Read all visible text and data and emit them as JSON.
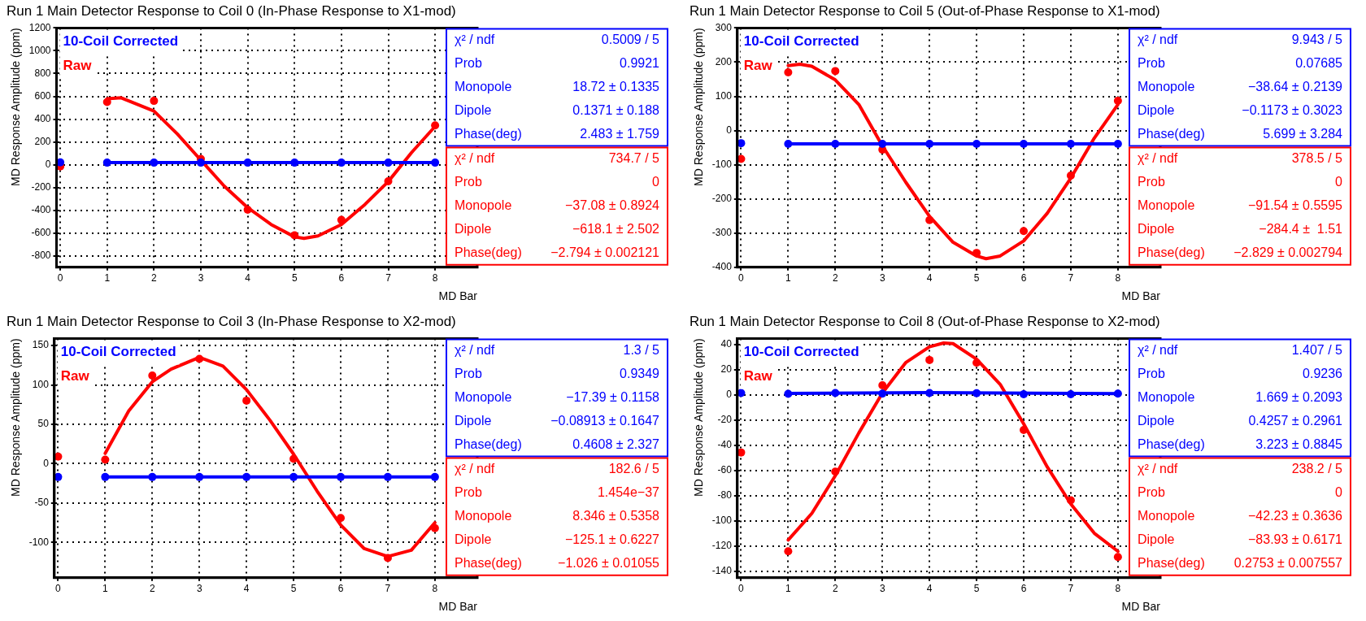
{
  "chart_data": [
    {
      "type": "scatter",
      "title": "Run 1 Main Detector Response to Coil 0 (In-Phase Response to X1-mod)",
      "xlabel": "MD Bar",
      "ylabel": "MD Response Amplitude (ppm)",
      "x": [
        0,
        1,
        2,
        3,
        4,
        5,
        6,
        7,
        8
      ],
      "xlim": [
        -0.08,
        8.9
      ],
      "xticks": [
        0,
        1,
        2,
        3,
        4,
        5,
        6,
        7,
        8
      ],
      "ylim": [
        -900,
        1200
      ],
      "yticks": [
        -800,
        -600,
        -400,
        -200,
        0,
        200,
        400,
        600,
        800,
        1000,
        1200
      ],
      "grid": true,
      "legend": "top left",
      "marker": "circle",
      "series": [
        {
          "name": "10-Coil Corrected",
          "color": "#0000ff",
          "values": [
            20,
            18,
            18,
            18,
            18,
            18,
            18,
            18,
            18
          ]
        },
        {
          "name": "Raw",
          "color": "#ff0000",
          "values": [
            -15,
            550,
            560,
            50,
            -395,
            -620,
            -485,
            -145,
            345
          ]
        },
        {
          "type": "line",
          "marker": "none",
          "color": "#0000ff",
          "x": [
            1,
            8
          ],
          "values": [
            19,
            19
          ]
        },
        {
          "type": "line",
          "marker": "none",
          "color": "#ff0000",
          "x": [
            1,
            1.3,
            2,
            2.5,
            3,
            3.5,
            4,
            4.5,
            5,
            5.2,
            5.5,
            6,
            6.5,
            7,
            7.5,
            8
          ],
          "values": [
            579,
            587,
            471,
            269,
            40,
            -188,
            -377,
            -525,
            -633,
            -646,
            -625,
            -525,
            -350,
            -148,
            108,
            336
          ]
        }
      ],
      "annotations": [
        "χ² / ndf",
        "0.5009 / 5",
        "Prob",
        "0.9921",
        "Monopole",
        "18.72 ± 0.1335",
        "Dipole",
        "0.1371 ± 0.188",
        "Phase(deg)",
        "2.483 ± 1.759",
        "χ² / ndf",
        "734.7 / 5",
        "Prob",
        "0",
        "Monopole",
        "−37.08 ± 0.8924",
        "Dipole",
        "−618.1 ± 2.502",
        "Phase(deg)",
        "−2.794 ± 0.002121"
      ]
    },
    {
      "type": "scatter",
      "title": "Run 1 Main Detector Response to Coil 5 (Out-of-Phase Response to X1-mod)",
      "xlabel": "MD Bar",
      "ylabel": "MD Response Amplitude (ppm)",
      "x": [
        0,
        1,
        2,
        3,
        4,
        5,
        6,
        7,
        8
      ],
      "xlim": [
        -0.08,
        8.9
      ],
      "xticks": [
        0,
        1,
        2,
        3,
        4,
        5,
        6,
        7,
        8
      ],
      "ylim": [
        -400,
        300
      ],
      "yticks": [
        -400,
        -300,
        -200,
        -100,
        0,
        100,
        200,
        300
      ],
      "grid": true,
      "legend": "top left",
      "marker": "circle",
      "series": [
        {
          "name": "10-Coil Corrected",
          "color": "#0000ff",
          "values": [
            -37,
            -39,
            -39,
            -39,
            -39,
            -39,
            -39,
            -39,
            -39
          ]
        },
        {
          "name": "Raw",
          "color": "#ff0000",
          "values": [
            -83,
            170,
            174,
            -56,
            -262,
            -358,
            -294,
            -132,
            87
          ]
        },
        {
          "type": "line",
          "marker": "none",
          "color": "#0000ff",
          "x": [
            1,
            8
          ],
          "values": [
            -39,
            -39
          ]
        },
        {
          "type": "line",
          "marker": "none",
          "color": "#ff0000",
          "x": [
            1,
            1.25,
            1.5,
            2,
            2.5,
            3,
            3.5,
            4,
            4.5,
            5,
            5.2,
            5.5,
            6,
            6.5,
            7,
            7.5,
            8
          ],
          "values": [
            190,
            194,
            188,
            148,
            76,
            -45,
            -152,
            -251,
            -327,
            -367,
            -375,
            -367,
            -323,
            -242,
            -139,
            -22,
            76
          ]
        }
      ],
      "annotations": [
        "χ² / ndf",
        "9.943 / 5",
        "Prob",
        "0.07685",
        "Monopole",
        "−38.64 ± 0.2139",
        "Dipole",
        "−0.1173 ± 0.3023",
        "Phase(deg)",
        "5.699 ± 3.284",
        "χ² / ndf",
        "378.5 / 5",
        "Prob",
        "0",
        "Monopole",
        "−91.54 ± 0.5595",
        "Dipole",
        "−284.4 ±  1.51",
        "Phase(deg)",
        "−2.829 ± 0.002794"
      ]
    },
    {
      "type": "scatter",
      "title": "Run 1 Main Detector Response to Coil 3 (In-Phase Response to X2-mod)",
      "xlabel": "MD Bar",
      "ylabel": "MD Response Amplitude (ppm)",
      "x": [
        0,
        1,
        2,
        3,
        4,
        5,
        6,
        7,
        8
      ],
      "xlim": [
        -0.08,
        8.9
      ],
      "xticks": [
        0,
        1,
        2,
        3,
        4,
        5,
        6,
        7,
        8
      ],
      "ylim": [
        -145,
        159
      ],
      "yticks": [
        -100,
        -50,
        0,
        50,
        100,
        150
      ],
      "grid": true,
      "legend": "top left",
      "marker": "circle",
      "series": [
        {
          "name": "10-Coil Corrected",
          "color": "#0000ff",
          "values": [
            -17,
            -17,
            -17,
            -17,
            -17,
            -17,
            -17,
            -17,
            -17
          ]
        },
        {
          "name": "Raw",
          "color": "#ff0000",
          "values": [
            9,
            5,
            112,
            133,
            80,
            6,
            -69,
            -120,
            -82
          ]
        },
        {
          "type": "line",
          "marker": "none",
          "color": "#0000ff",
          "x": [
            1,
            8
          ],
          "values": [
            -17,
            -17
          ]
        },
        {
          "type": "line",
          "marker": "none",
          "color": "#ff0000",
          "x": [
            1,
            1.5,
            2,
            2.4,
            3,
            3.5,
            4,
            4.5,
            5,
            5.5,
            6,
            6.5,
            7,
            7.5,
            8
          ],
          "values": [
            13,
            67,
            104,
            120,
            135,
            124,
            94,
            55,
            12,
            -35,
            -78,
            -108,
            -118,
            -110,
            -75
          ]
        }
      ],
      "annotations": [
        "χ² / ndf",
        "1.3 / 5",
        "Prob",
        "0.9349",
        "Monopole",
        "−17.39 ± 0.1158",
        "Dipole",
        "−0.08913 ± 0.1647",
        "Phase(deg)",
        "0.4608 ± 2.327",
        "χ² / ndf",
        "182.6 / 5",
        "Prob",
        "1.454e−37",
        "Monopole",
        "8.346 ± 0.5358",
        "Dipole",
        "−125.1 ± 0.6227",
        "Phase(deg)",
        "−1.026 ± 0.01055"
      ]
    },
    {
      "type": "scatter",
      "title": "Run 1 Main Detector Response to Coil 8 (Out-of-Phase Response to X2-mod)",
      "xlabel": "MD Bar",
      "ylabel": "MD Response Amplitude (ppm)",
      "x": [
        0,
        1,
        2,
        3,
        4,
        5,
        6,
        7,
        8
      ],
      "xlim": [
        -0.08,
        8.9
      ],
      "xticks": [
        0,
        1,
        2,
        3,
        4,
        5,
        6,
        7,
        8
      ],
      "ylim": [
        -145,
        45
      ],
      "yticks": [
        -140,
        -120,
        -100,
        -80,
        -60,
        -40,
        -20,
        0,
        20,
        40
      ],
      "grid": true,
      "legend": "top left",
      "marker": "circle",
      "series": [
        {
          "name": "10-Coil Corrected",
          "color": "#0000ff",
          "values": [
            1.7,
            1,
            1.7,
            1.2,
            1.7,
            1.5,
            0.7,
            0.7,
            1.2
          ]
        },
        {
          "name": "Raw",
          "color": "#ff0000",
          "values": [
            -45.5,
            -124,
            -60.7,
            7.8,
            27.9,
            25.7,
            -27.7,
            -83.5,
            -128.5
          ]
        },
        {
          "type": "line",
          "marker": "none",
          "color": "#0000ff",
          "x": [
            1,
            4,
            8
          ],
          "values": [
            1.3,
            2,
            1.2
          ]
        },
        {
          "type": "line",
          "marker": "none",
          "color": "#ff0000",
          "x": [
            1,
            1.5,
            2,
            2.5,
            3,
            3.5,
            4,
            4.3,
            4.5,
            5,
            5.5,
            6,
            6.5,
            7,
            7.5,
            8
          ],
          "values": [
            -115,
            -94,
            -64,
            -30,
            1.7,
            26,
            38.4,
            41.4,
            40.9,
            28.6,
            8.6,
            -22.8,
            -57,
            -86.4,
            -109.7,
            -124
          ]
        }
      ],
      "annotations": [
        "χ² / ndf",
        "1.407 / 5",
        "Prob",
        "0.9236",
        "Monopole",
        "1.669 ± 0.2093",
        "Dipole",
        "0.4257 ± 0.2961",
        "Phase(deg)",
        "3.223 ± 0.8845",
        "χ² / ndf",
        "238.2 / 5",
        "Prob",
        "0",
        "Monopole",
        "−42.23 ± 0.3636",
        "Dipole",
        "−83.93 ± 0.6171",
        "Phase(deg)",
        "0.2753 ± 0.007557"
      ]
    }
  ]
}
